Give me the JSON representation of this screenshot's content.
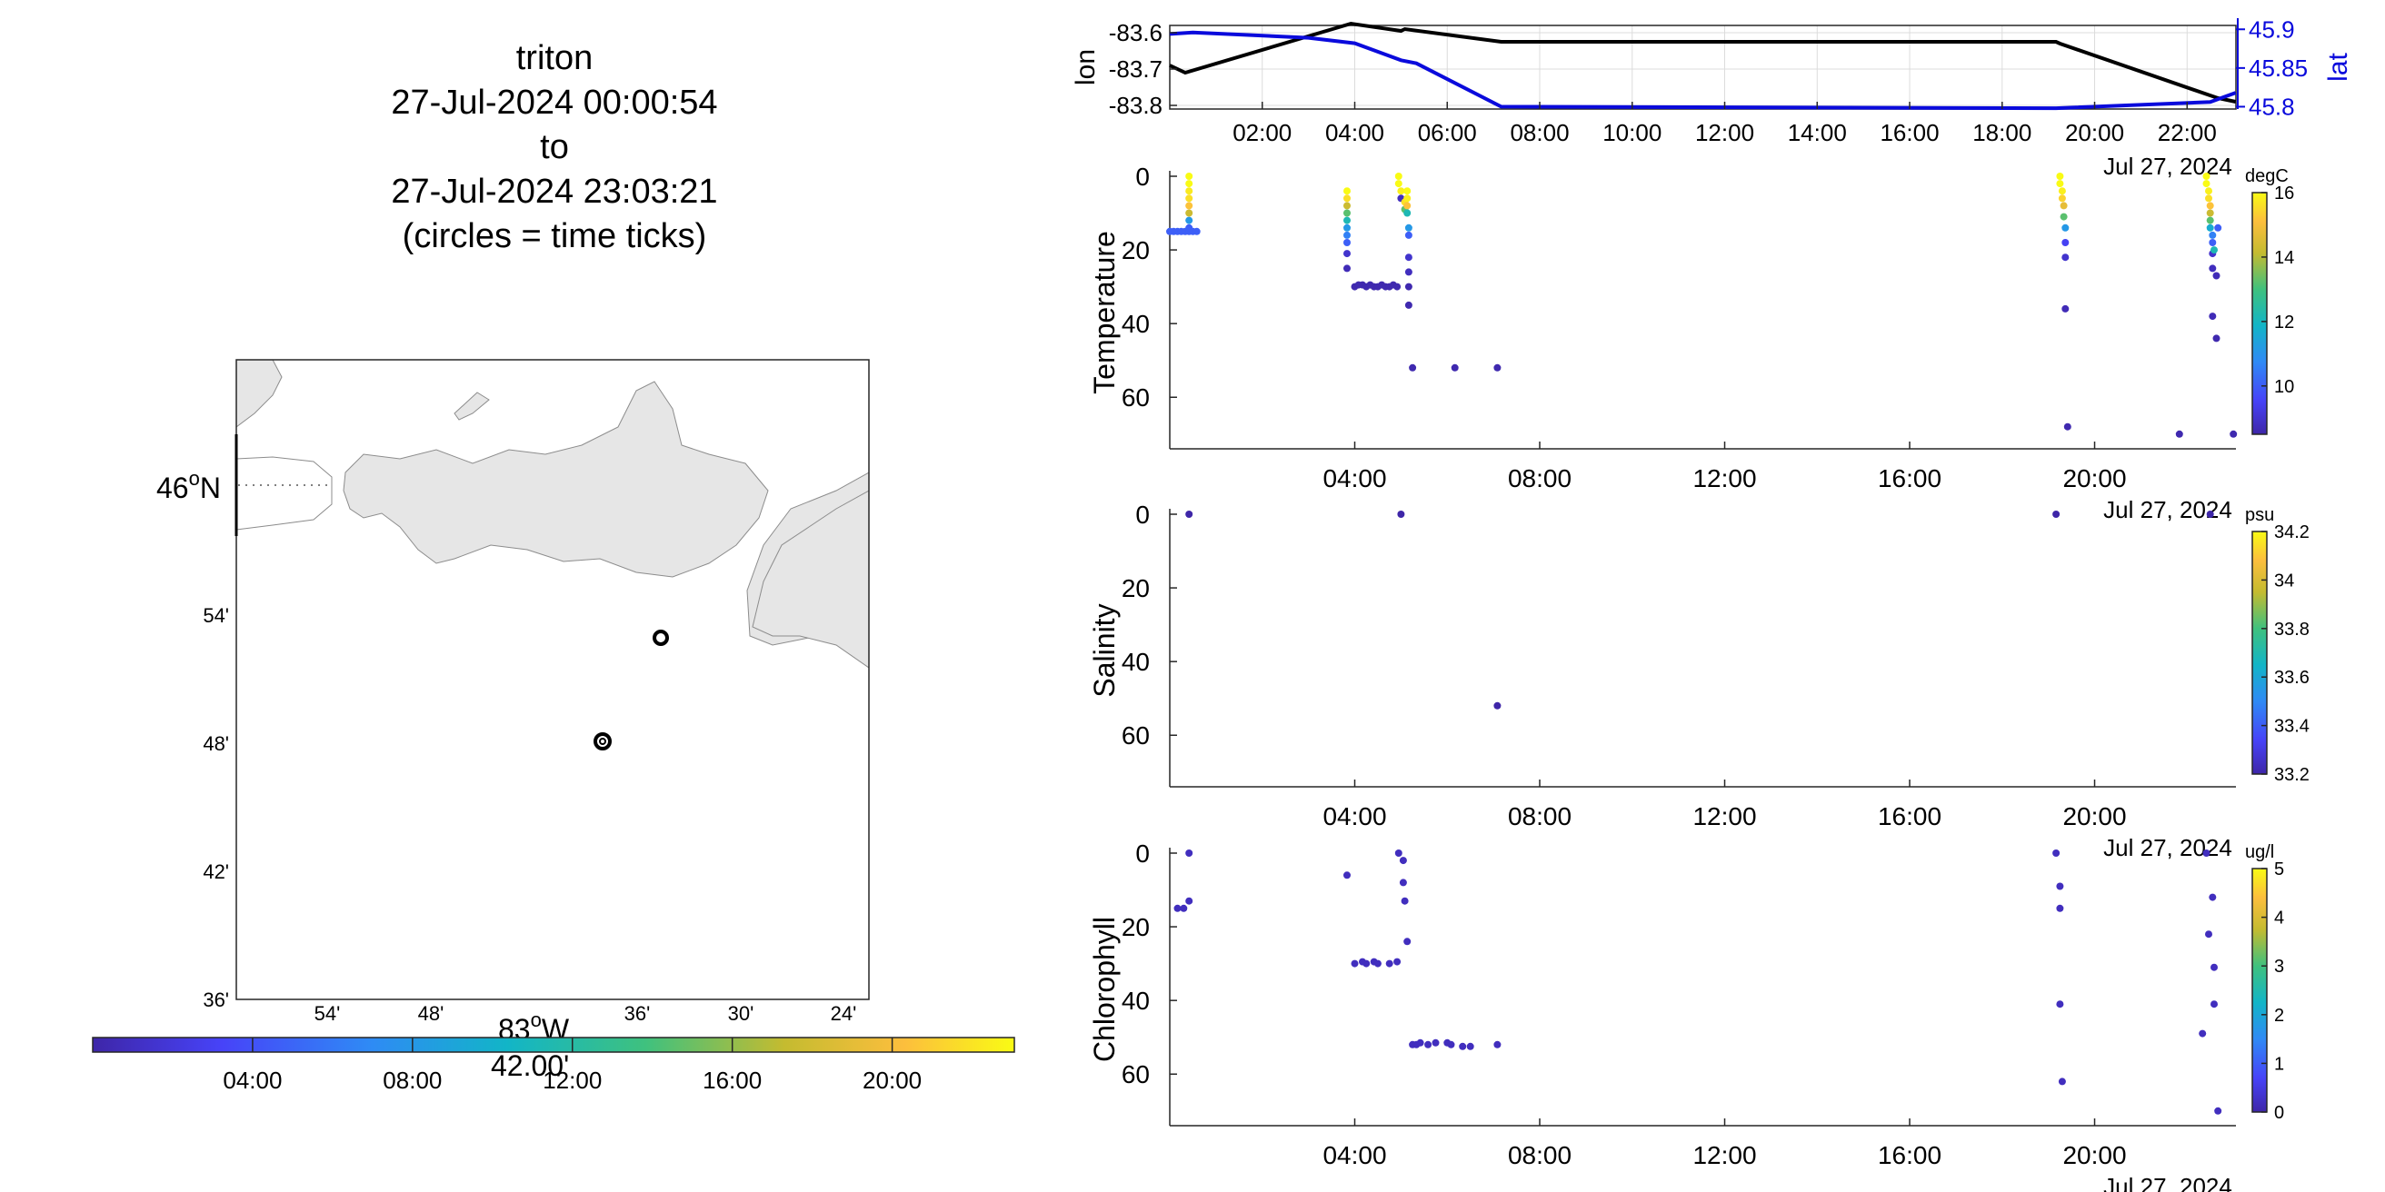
{
  "header": {
    "lines": [
      "triton",
      "27-Jul-2024 00:00:54",
      "to",
      "27-Jul-2024 23:03:21",
      "(circles = time ticks)"
    ]
  },
  "map": {
    "lat_main_label": "46",
    "lat_main_hemisphere": "N",
    "lat_minor_labels": [
      "54'",
      "48'",
      "42'",
      "36'"
    ],
    "lon_minor_labels": [
      "54'",
      "48'",
      "36'",
      "30'",
      "24'"
    ],
    "lon_main_label": "83",
    "lon_main_hemisphere": "W",
    "lon_sub_label": "42.00'",
    "time_colorbar_ticks": [
      "04:00",
      "08:00",
      "12:00",
      "16:00",
      "20:00"
    ]
  },
  "colors": {
    "lon_line": "#000000",
    "lat_line": "#0a0adc",
    "land": "#e6e6e6",
    "grid": "#dcdcdc",
    "parula": [
      "#3e26a8",
      "#4743f8",
      "#2f8af5",
      "#12b5c7",
      "#3fc17e",
      "#c4bb30",
      "#fcbe3d",
      "#f9fb14"
    ]
  },
  "chart_data": [
    {
      "type": "line",
      "xlabel": "",
      "x_ticks": [
        "02:00",
        "04:00",
        "06:00",
        "08:00",
        "10:00",
        "12:00",
        "14:00",
        "16:00",
        "18:00",
        "20:00",
        "22:00"
      ],
      "date_label": "Jul 27, 2024",
      "grid": true,
      "y_left": {
        "label": "lon",
        "ticks": [
          "-83.6",
          "-83.7",
          "-83.8"
        ],
        "ylim": [
          -83.81,
          -83.58
        ]
      },
      "y_right": {
        "label": "lat",
        "ticks": [
          "45.9",
          "45.85",
          "45.8"
        ],
        "ylim": [
          45.797,
          45.905
        ]
      },
      "series": [
        {
          "name": "lon",
          "axis": "left",
          "x": [
            "00:00",
            "00:20",
            "03:55",
            "05:00",
            "05:05",
            "07:10",
            "19:10",
            "19:15",
            "22:40",
            "23:03"
          ],
          "values": [
            -83.69,
            -83.71,
            -83.575,
            -83.595,
            -83.59,
            -83.625,
            -83.625,
            -83.63,
            -83.78,
            -83.79
          ]
        },
        {
          "name": "lat",
          "axis": "right",
          "x": [
            "00:00",
            "00:30",
            "03:00",
            "04:00",
            "05:00",
            "05:20",
            "07:10",
            "13:00",
            "19:10",
            "22:30",
            "23:03"
          ],
          "values": [
            45.894,
            45.896,
            45.889,
            45.882,
            45.86,
            45.856,
            45.8,
            45.799,
            45.798,
            45.806,
            45.818
          ]
        }
      ]
    },
    {
      "type": "scatter",
      "ylabel": "Temperature",
      "unit": "degC",
      "ylim": [
        74,
        0
      ],
      "y_ticks": [
        "0",
        "20",
        "40",
        "60"
      ],
      "x_ticks": [
        "04:00",
        "08:00",
        "12:00",
        "16:00",
        "20:00"
      ],
      "date_label": "Jul 27, 2024",
      "colorbar": {
        "label": "degC",
        "ticks": [
          "16",
          "14",
          "12",
          "10"
        ],
        "range": [
          8.5,
          16
        ]
      },
      "points": [
        {
          "t": "00:00",
          "depth": 15,
          "v": 10
        },
        {
          "t": "00:05",
          "depth": 15,
          "v": 10
        },
        {
          "t": "00:10",
          "depth": 15,
          "v": 10
        },
        {
          "t": "00:15",
          "depth": 15,
          "v": 10
        },
        {
          "t": "00:20",
          "depth": 15,
          "v": 10
        },
        {
          "t": "00:25",
          "depth": 15,
          "v": 10
        },
        {
          "t": "00:30",
          "depth": 15,
          "v": 10
        },
        {
          "t": "00:35",
          "depth": 15,
          "v": 10
        },
        {
          "t": "00:25",
          "depth": 0,
          "v": 16
        },
        {
          "t": "00:25",
          "depth": 2,
          "v": 16
        },
        {
          "t": "00:25",
          "depth": 4,
          "v": 15.7
        },
        {
          "t": "00:25",
          "depth": 6,
          "v": 15.5
        },
        {
          "t": "00:25",
          "depth": 8,
          "v": 15
        },
        {
          "t": "00:25",
          "depth": 10,
          "v": 14
        },
        {
          "t": "00:25",
          "depth": 12,
          "v": 11
        },
        {
          "t": "00:25",
          "depth": 14,
          "v": 10
        },
        {
          "t": "03:50",
          "depth": 4,
          "v": 16
        },
        {
          "t": "03:50",
          "depth": 6,
          "v": 15.5
        },
        {
          "t": "03:50",
          "depth": 8,
          "v": 14
        },
        {
          "t": "03:50",
          "depth": 10,
          "v": 13
        },
        {
          "t": "03:50",
          "depth": 12,
          "v": 12
        },
        {
          "t": "03:50",
          "depth": 14,
          "v": 11
        },
        {
          "t": "03:50",
          "depth": 16,
          "v": 10.5
        },
        {
          "t": "03:50",
          "depth": 18,
          "v": 10
        },
        {
          "t": "03:50",
          "depth": 21,
          "v": 9
        },
        {
          "t": "03:50",
          "depth": 25,
          "v": 8.7
        },
        {
          "t": "04:00",
          "depth": 30,
          "v": 8.6
        },
        {
          "t": "04:05",
          "depth": 29.5,
          "v": 8.6
        },
        {
          "t": "04:10",
          "depth": 29.5,
          "v": 8.6
        },
        {
          "t": "04:15",
          "depth": 30,
          "v": 8.6
        },
        {
          "t": "04:20",
          "depth": 29.5,
          "v": 8.6
        },
        {
          "t": "04:25",
          "depth": 30,
          "v": 8.6
        },
        {
          "t": "04:30",
          "depth": 30,
          "v": 8.6
        },
        {
          "t": "04:35",
          "depth": 29.5,
          "v": 8.6
        },
        {
          "t": "04:40",
          "depth": 30,
          "v": 8.6
        },
        {
          "t": "04:45",
          "depth": 30,
          "v": 8.6
        },
        {
          "t": "04:50",
          "depth": 29.5,
          "v": 8.6
        },
        {
          "t": "04:55",
          "depth": 30,
          "v": 8.6
        },
        {
          "t": "04:57",
          "depth": 0,
          "v": 16
        },
        {
          "t": "04:57",
          "depth": 2,
          "v": 16
        },
        {
          "t": "05:00",
          "depth": 4,
          "v": 15.8
        },
        {
          "t": "05:00",
          "depth": 6,
          "v": 8.8
        },
        {
          "t": "05:05",
          "depth": 7,
          "v": 15.5
        },
        {
          "t": "05:05",
          "depth": 9,
          "v": 13
        },
        {
          "t": "05:08",
          "depth": 4,
          "v": 16
        },
        {
          "t": "05:08",
          "depth": 6,
          "v": 15.8
        },
        {
          "t": "05:08",
          "depth": 8,
          "v": 15
        },
        {
          "t": "05:08",
          "depth": 10,
          "v": 12
        },
        {
          "t": "05:10",
          "depth": 14,
          "v": 11
        },
        {
          "t": "05:10",
          "depth": 16,
          "v": 10
        },
        {
          "t": "05:10",
          "depth": 22,
          "v": 9
        },
        {
          "t": "05:10",
          "depth": 26,
          "v": 8.8
        },
        {
          "t": "05:10",
          "depth": 30,
          "v": 8.6
        },
        {
          "t": "05:10",
          "depth": 35,
          "v": 8.6
        },
        {
          "t": "05:15",
          "depth": 52,
          "v": 8.6
        },
        {
          "t": "06:10",
          "depth": 52,
          "v": 8.6
        },
        {
          "t": "07:05",
          "depth": 52,
          "v": 8.6
        },
        {
          "t": "19:15",
          "depth": 0,
          "v": 16
        },
        {
          "t": "19:15",
          "depth": 2,
          "v": 16
        },
        {
          "t": "19:18",
          "depth": 4,
          "v": 15.8
        },
        {
          "t": "19:18",
          "depth": 6,
          "v": 15.3
        },
        {
          "t": "19:20",
          "depth": 8,
          "v": 14.5
        },
        {
          "t": "19:20",
          "depth": 11,
          "v": 13
        },
        {
          "t": "19:22",
          "depth": 14,
          "v": 11
        },
        {
          "t": "19:22",
          "depth": 18,
          "v": 9.5
        },
        {
          "t": "19:22",
          "depth": 22,
          "v": 9
        },
        {
          "t": "19:22",
          "depth": 36,
          "v": 8.7
        },
        {
          "t": "19:25",
          "depth": 68,
          "v": 8.6
        },
        {
          "t": "22:25",
          "depth": 0,
          "v": 16
        },
        {
          "t": "22:25",
          "depth": 2,
          "v": 16
        },
        {
          "t": "22:28",
          "depth": 4,
          "v": 15.8
        },
        {
          "t": "22:28",
          "depth": 6,
          "v": 15.5
        },
        {
          "t": "22:30",
          "depth": 8,
          "v": 15
        },
        {
          "t": "22:30",
          "depth": 10,
          "v": 14
        },
        {
          "t": "22:30",
          "depth": 12,
          "v": 13
        },
        {
          "t": "22:30",
          "depth": 14,
          "v": 11.5
        },
        {
          "t": "22:33",
          "depth": 16,
          "v": 10.5
        },
        {
          "t": "22:33",
          "depth": 18,
          "v": 10
        },
        {
          "t": "22:33",
          "depth": 21,
          "v": 9
        },
        {
          "t": "22:33",
          "depth": 25,
          "v": 8.8
        },
        {
          "t": "22:33",
          "depth": 38,
          "v": 8.7
        },
        {
          "t": "22:35",
          "depth": 20,
          "v": 12
        },
        {
          "t": "22:38",
          "depth": 27,
          "v": 8.7
        },
        {
          "t": "22:38",
          "depth": 44,
          "v": 8.6
        },
        {
          "t": "22:40",
          "depth": 14,
          "v": 10
        },
        {
          "t": "21:50",
          "depth": 70,
          "v": 8.6
        },
        {
          "t": "23:00",
          "depth": 70,
          "v": 8.6
        }
      ]
    },
    {
      "type": "scatter",
      "ylabel": "Salinity",
      "unit": "psu",
      "ylim": [
        74,
        0
      ],
      "y_ticks": [
        "0",
        "20",
        "40",
        "60"
      ],
      "x_ticks": [
        "04:00",
        "08:00",
        "12:00",
        "16:00",
        "20:00"
      ],
      "date_label": "Jul 27, 2024",
      "colorbar": {
        "label": "psu",
        "ticks": [
          "34.2",
          "34",
          "33.8",
          "33.6",
          "33.4",
          "33.2"
        ],
        "range": [
          33.2,
          34.2
        ]
      },
      "points": [
        {
          "t": "00:25",
          "depth": 0,
          "v": 33.2
        },
        {
          "t": "05:00",
          "depth": 0,
          "v": 33.2
        },
        {
          "t": "07:05",
          "depth": 52,
          "v": 33.2
        },
        {
          "t": "19:10",
          "depth": 0,
          "v": 33.2
        },
        {
          "t": "22:30",
          "depth": 0,
          "v": 33.2
        }
      ]
    },
    {
      "type": "scatter",
      "ylabel": "Chlorophyll",
      "unit": "ug/l",
      "ylim": [
        74,
        0
      ],
      "y_ticks": [
        "0",
        "20",
        "40",
        "60"
      ],
      "x_ticks": [
        "04:00",
        "08:00",
        "12:00",
        "16:00",
        "20:00"
      ],
      "date_label": "Jul 27, 2024",
      "colorbar": {
        "label": "ug/l",
        "ticks": [
          "5",
          "4",
          "3",
          "2",
          "1",
          "0"
        ],
        "range": [
          0,
          5
        ]
      },
      "points": [
        {
          "t": "00:10",
          "depth": 15,
          "v": 0.2
        },
        {
          "t": "00:18",
          "depth": 15,
          "v": 0.2
        },
        {
          "t": "00:25",
          "depth": 13,
          "v": 0.2
        },
        {
          "t": "00:25",
          "depth": 0,
          "v": 0.2
        },
        {
          "t": "03:50",
          "depth": 6,
          "v": 0.2
        },
        {
          "t": "04:00",
          "depth": 30,
          "v": 0.2
        },
        {
          "t": "04:10",
          "depth": 29.5,
          "v": 0.2
        },
        {
          "t": "04:15",
          "depth": 30,
          "v": 0.2
        },
        {
          "t": "04:25",
          "depth": 29.5,
          "v": 0.2
        },
        {
          "t": "04:30",
          "depth": 30,
          "v": 0.2
        },
        {
          "t": "04:45",
          "depth": 30,
          "v": 0.2
        },
        {
          "t": "04:55",
          "depth": 29.5,
          "v": 0.2
        },
        {
          "t": "04:57",
          "depth": 0,
          "v": 0.2
        },
        {
          "t": "05:03",
          "depth": 2,
          "v": 0.2
        },
        {
          "t": "05:03",
          "depth": 8,
          "v": 0.2
        },
        {
          "t": "05:05",
          "depth": 13,
          "v": 0.2
        },
        {
          "t": "05:08",
          "depth": 24,
          "v": 0.2
        },
        {
          "t": "05:15",
          "depth": 52,
          "v": 0.2
        },
        {
          "t": "05:20",
          "depth": 52,
          "v": 0.2
        },
        {
          "t": "05:25",
          "depth": 51.5,
          "v": 0.2
        },
        {
          "t": "05:35",
          "depth": 52,
          "v": 0.2
        },
        {
          "t": "05:45",
          "depth": 51.5,
          "v": 0.2
        },
        {
          "t": "06:00",
          "depth": 51.5,
          "v": 0.2
        },
        {
          "t": "06:05",
          "depth": 52,
          "v": 0.2
        },
        {
          "t": "06:20",
          "depth": 52.5,
          "v": 0.2
        },
        {
          "t": "06:30",
          "depth": 52.5,
          "v": 0.2
        },
        {
          "t": "07:05",
          "depth": 52,
          "v": 0.2
        },
        {
          "t": "19:10",
          "depth": 0,
          "v": 0.2
        },
        {
          "t": "19:15",
          "depth": 9,
          "v": 0.2
        },
        {
          "t": "19:15",
          "depth": 15,
          "v": 0.2
        },
        {
          "t": "19:15",
          "depth": 41,
          "v": 0.2
        },
        {
          "t": "19:18",
          "depth": 62,
          "v": 0.2
        },
        {
          "t": "22:25",
          "depth": 0,
          "v": 0.2
        },
        {
          "t": "22:28",
          "depth": 22,
          "v": 0.2
        },
        {
          "t": "22:20",
          "depth": 49,
          "v": 0.2
        },
        {
          "t": "22:33",
          "depth": 12,
          "v": 0.2
        },
        {
          "t": "22:35",
          "depth": 31,
          "v": 0.2
        },
        {
          "t": "22:35",
          "depth": 41,
          "v": 0.2
        },
        {
          "t": "22:40",
          "depth": 70,
          "v": 0.2
        }
      ]
    }
  ]
}
